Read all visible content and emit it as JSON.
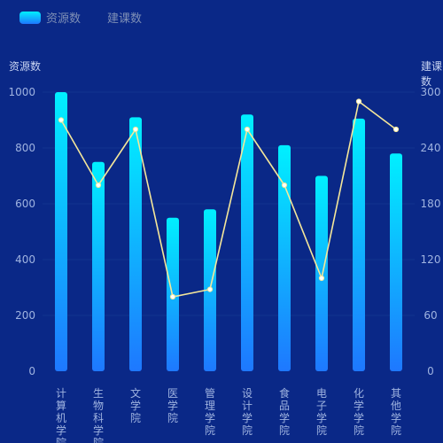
{
  "legend": {
    "bar_label": "资源数",
    "line_label": "建课数"
  },
  "axes": {
    "left_title": "资源数",
    "right_title": "建课数"
  },
  "colors": {
    "background": "#0a2887",
    "bar_top": "#00f0ff",
    "bar_bottom": "#1e78ff",
    "line": "#f5e79a",
    "point_fill": "#ffffff",
    "tick_text": "#9fb3e0",
    "grid": "#12348f"
  },
  "chart_data": {
    "type": "bar",
    "categories": [
      "计算机学院",
      "生物科学院",
      "文学院",
      "医学院",
      "管理学院",
      "设计学院",
      "食品学院",
      "电子学院",
      "化学学院",
      "其他学院"
    ],
    "series": [
      {
        "name": "资源数",
        "type": "bar",
        "axis": "left",
        "values": [
          1000,
          750,
          910,
          550,
          580,
          920,
          810,
          700,
          905,
          780
        ]
      },
      {
        "name": "建课数",
        "type": "line",
        "axis": "right",
        "values": [
          270,
          200,
          260,
          80,
          88,
          260,
          200,
          100,
          290,
          260
        ]
      }
    ],
    "ylim_left": [
      0,
      1000
    ],
    "ylim_right": [
      0,
      300
    ],
    "yticks_left": [
      0,
      200,
      400,
      600,
      800,
      1000
    ],
    "yticks_right": [
      0,
      60,
      120,
      180,
      240,
      300
    ],
    "ylabel_left": "资源数",
    "ylabel_right": "建课数",
    "legend_position": "top-left",
    "grid": true
  }
}
